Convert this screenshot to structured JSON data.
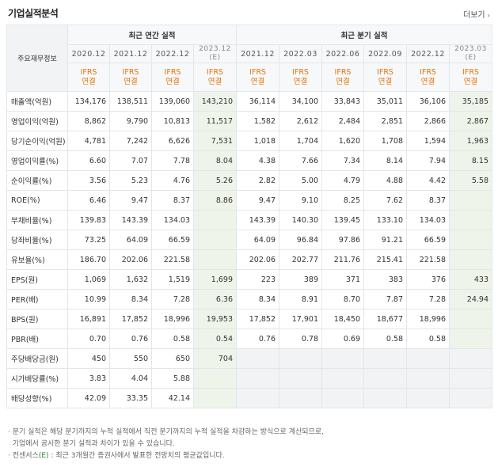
{
  "header": {
    "title": "기업실적분석",
    "more_label": "더보기",
    "more_arrow": "›"
  },
  "table": {
    "item_header": "주요재무정보",
    "group_annual": "최근 연간 실적",
    "group_quarter": "최근 분기 실적",
    "periods": [
      {
        "label": "2020.12",
        "sub": ""
      },
      {
        "label": "2021.12",
        "sub": ""
      },
      {
        "label": "2022.12",
        "sub": ""
      },
      {
        "label": "2023.12",
        "sub": "(E)"
      },
      {
        "label": "2021.12",
        "sub": ""
      },
      {
        "label": "2022.03",
        "sub": ""
      },
      {
        "label": "2022.06",
        "sub": ""
      },
      {
        "label": "2022.09",
        "sub": ""
      },
      {
        "label": "2022.12",
        "sub": ""
      },
      {
        "label": "2023.03",
        "sub": "(E)"
      }
    ],
    "basis": [
      "IFRS\n연결",
      "IFRS\n연결",
      "IFRS\n연결",
      "IFRS\n연결",
      "IFRS\n연결",
      "IFRS\n연결",
      "IFRS\n연결",
      "IFRS\n연결",
      "IFRS\n연결",
      "IFRS\n연결"
    ],
    "rows": [
      {
        "label": "매출액(억원)",
        "values": [
          "134,176",
          "138,511",
          "139,060",
          "143,210",
          "36,114",
          "34,100",
          "33,843",
          "35,011",
          "36,106",
          "35,185"
        ]
      },
      {
        "label": "영업이익(억원)",
        "values": [
          "8,862",
          "9,790",
          "10,813",
          "11,517",
          "1,582",
          "2,612",
          "2,484",
          "2,851",
          "2,866",
          "2,867"
        ]
      },
      {
        "label": "당기순이익(억원)",
        "values": [
          "4,781",
          "7,242",
          "6,626",
          "7,531",
          "1,018",
          "1,704",
          "1,620",
          "1,708",
          "1,594",
          "1,963"
        ]
      },
      {
        "label": "영업이익률(%)",
        "values": [
          "6.60",
          "7.07",
          "7.78",
          "8.04",
          "4.38",
          "7.66",
          "7.34",
          "8.14",
          "7.94",
          "8.15"
        ]
      },
      {
        "label": "순이익률(%)",
        "values": [
          "3.56",
          "5.23",
          "4.76",
          "5.26",
          "2.82",
          "5.00",
          "4.79",
          "4.88",
          "4.42",
          "5.58"
        ]
      },
      {
        "label": "ROE(%)",
        "values": [
          "6.46",
          "9.47",
          "8.37",
          "8.86",
          "9.47",
          "9.10",
          "8.25",
          "7.62",
          "8.37",
          ""
        ]
      },
      {
        "label": "부채비율(%)",
        "values": [
          "139.83",
          "143.39",
          "134.03",
          "",
          "143.39",
          "140.30",
          "139.45",
          "133.10",
          "134.03",
          ""
        ]
      },
      {
        "label": "당좌비율(%)",
        "values": [
          "73.25",
          "64.09",
          "66.59",
          "",
          "64.09",
          "96.84",
          "97.86",
          "91.21",
          "66.59",
          ""
        ]
      },
      {
        "label": "유보율(%)",
        "values": [
          "186.70",
          "202.06",
          "221.58",
          "",
          "202.06",
          "202.77",
          "211.76",
          "215.41",
          "221.58",
          ""
        ]
      },
      {
        "label": "EPS(원)",
        "values": [
          "1,069",
          "1,632",
          "1,519",
          "1,699",
          "223",
          "389",
          "371",
          "383",
          "376",
          "433"
        ]
      },
      {
        "label": "PER(배)",
        "values": [
          "10.99",
          "8.34",
          "7.28",
          "6.36",
          "8.34",
          "8.91",
          "8.70",
          "7.87",
          "7.28",
          "24.94"
        ]
      },
      {
        "label": "BPS(원)",
        "values": [
          "16,891",
          "17,852",
          "18,996",
          "19,953",
          "17,852",
          "17,901",
          "18,450",
          "18,677",
          "18,996",
          ""
        ]
      },
      {
        "label": "PBR(배)",
        "values": [
          "0.70",
          "0.76",
          "0.58",
          "0.54",
          "0.76",
          "0.78",
          "0.69",
          "0.58",
          "0.58",
          ""
        ]
      },
      {
        "label": "주당배당금(원)",
        "values": [
          "450",
          "550",
          "650",
          "704",
          "",
          "",
          "",
          "",
          "",
          ""
        ]
      },
      {
        "label": "시가배당률(%)",
        "values": [
          "3.83",
          "4.04",
          "5.88",
          "",
          "",
          "",
          "",
          "",
          "",
          ""
        ]
      },
      {
        "label": "배당성향(%)",
        "values": [
          "42.09",
          "33.35",
          "42.14",
          "",
          "",
          "",
          "",
          "",
          "",
          ""
        ]
      }
    ]
  },
  "notes": {
    "line1": "· 분기 실적은 해당 분기까지의 누적 실적에서 직전 분기까지의 누적 실적을 차감하는 방식으로 계산되므로,",
    "line2": "  기업에서 공시한 분기 실적과 차이가 있을 수 있습니다.",
    "line3_prefix": "· 컨센서스",
    "line3_e": "(E)",
    "line3_suffix": " : 최근 3개월간 증권사에서 발표한 전망치의 평균값입니다."
  }
}
